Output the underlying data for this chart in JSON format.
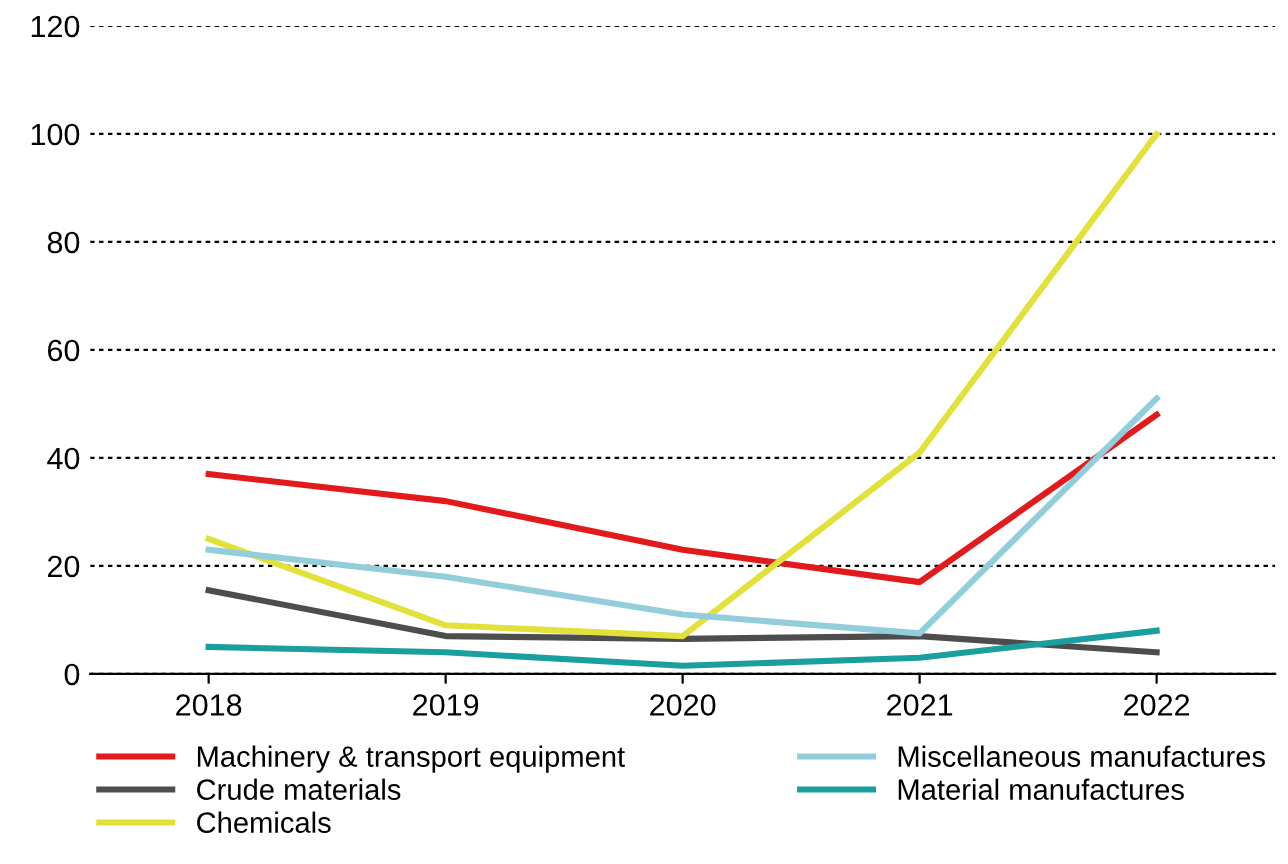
{
  "chart_data": {
    "type": "line",
    "categories": [
      "2018",
      "2019",
      "2020",
      "2021",
      "2022"
    ],
    "series": [
      {
        "name": "Machinery & transport equipment",
        "color": "#e31a1c",
        "values": [
          37,
          32,
          23,
          17,
          48
        ]
      },
      {
        "name": "Crude materials",
        "color": "#4d4d4d",
        "values": [
          15.5,
          7,
          6.5,
          7,
          4
        ]
      },
      {
        "name": "Chemicals",
        "color": "#e1e13a",
        "values": [
          25,
          9,
          7,
          41,
          100
        ]
      },
      {
        "name": "Miscellaneous manufactures",
        "color": "#92cddc",
        "values": [
          23,
          18,
          11,
          7.5,
          51
        ]
      },
      {
        "name": "Material manufactures",
        "color": "#1a9e9e",
        "values": [
          5,
          4,
          1.5,
          3,
          8
        ]
      }
    ],
    "ylim": [
      0,
      120
    ],
    "yticks": [
      0,
      20,
      40,
      60,
      80,
      100,
      120
    ],
    "grid": "y",
    "legend": "bottom",
    "marker": "none",
    "line_style": "solid"
  }
}
